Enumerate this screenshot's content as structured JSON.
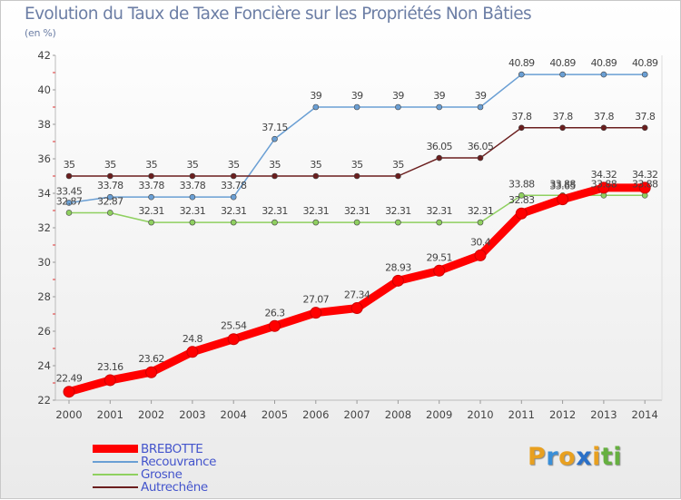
{
  "header": {
    "title": "Evolution du Taux de Taxe Foncière sur les Propriétés Non Bâties",
    "unit": "(en %)"
  },
  "logo": {
    "letters": [
      "P",
      "r",
      "o",
      "x",
      "i",
      "t",
      "i"
    ],
    "colors": [
      "#e8a020",
      "#3a8fd8",
      "#e8a020",
      "#2a70c8",
      "#e8a020",
      "#66b040",
      "#66b040"
    ]
  },
  "chart_data": {
    "type": "line",
    "title": "Evolution du Taux de Taxe Foncière sur les Propriétés Non Bâties",
    "ylabel": "(en %)",
    "xlabel": "",
    "ylim": [
      22,
      42
    ],
    "yticks": [
      22,
      24,
      26,
      28,
      30,
      32,
      34,
      36,
      38,
      40,
      42
    ],
    "grid": false,
    "legend_position": "bottom-left",
    "x": [
      "2000",
      "2001",
      "2002",
      "2003",
      "2004",
      "2005",
      "2006",
      "2007",
      "2008",
      "2009",
      "2010",
      "2011",
      "2012",
      "2013",
      "2014"
    ],
    "series": [
      {
        "name": "BREBOTTE",
        "color": "#ff0000",
        "values": [
          22.49,
          23.16,
          23.62,
          24.8,
          25.54,
          26.3,
          27.07,
          27.34,
          28.93,
          29.51,
          30.4,
          32.83,
          33.65,
          34.32,
          34.32
        ],
        "labels": [
          "22.49",
          "23.16",
          "23.62",
          "24.8",
          "25.54",
          "26.3",
          "27.07",
          "27.34",
          "28.93",
          "29.51",
          "30.4",
          "32.83",
          "33.65",
          "34.32",
          "34.32"
        ]
      },
      {
        "name": "Recouvrance",
        "color": "#6a9fd4",
        "values": [
          33.45,
          33.78,
          33.78,
          33.78,
          33.78,
          37.15,
          39,
          39,
          39,
          39,
          39,
          40.89,
          40.89,
          40.89,
          40.89
        ],
        "labels": [
          "33.45",
          "33.78",
          "33.78",
          "33.78",
          "33.78",
          "37.15",
          "39",
          "39",
          "39",
          "39",
          "39",
          "40.89",
          "40.89",
          "40.89",
          "40.89"
        ]
      },
      {
        "name": "Grosne",
        "color": "#8fd060",
        "values": [
          32.87,
          32.87,
          32.31,
          32.31,
          32.31,
          32.31,
          32.31,
          32.31,
          32.31,
          32.31,
          32.31,
          33.88,
          33.88,
          33.88,
          33.88
        ],
        "labels": [
          "32.87",
          "32.87",
          "32.31",
          "32.31",
          "32.31",
          "32.31",
          "32.31",
          "32.31",
          "32.31",
          "32.31",
          "32.31",
          "33.88",
          "33.88",
          "33.88",
          "33.88"
        ]
      },
      {
        "name": "Autrechêne",
        "color": "#6b1e1e",
        "values": [
          35,
          35,
          35,
          35,
          35,
          35,
          35,
          35,
          35,
          36.05,
          36.05,
          37.8,
          37.8,
          37.8,
          37.8
        ],
        "labels": [
          "35",
          "35",
          "35",
          "35",
          "35",
          "35",
          "35",
          "35",
          "35",
          "36.05",
          "36.05",
          "37.8",
          "37.8",
          "37.8",
          "37.8"
        ]
      }
    ]
  }
}
